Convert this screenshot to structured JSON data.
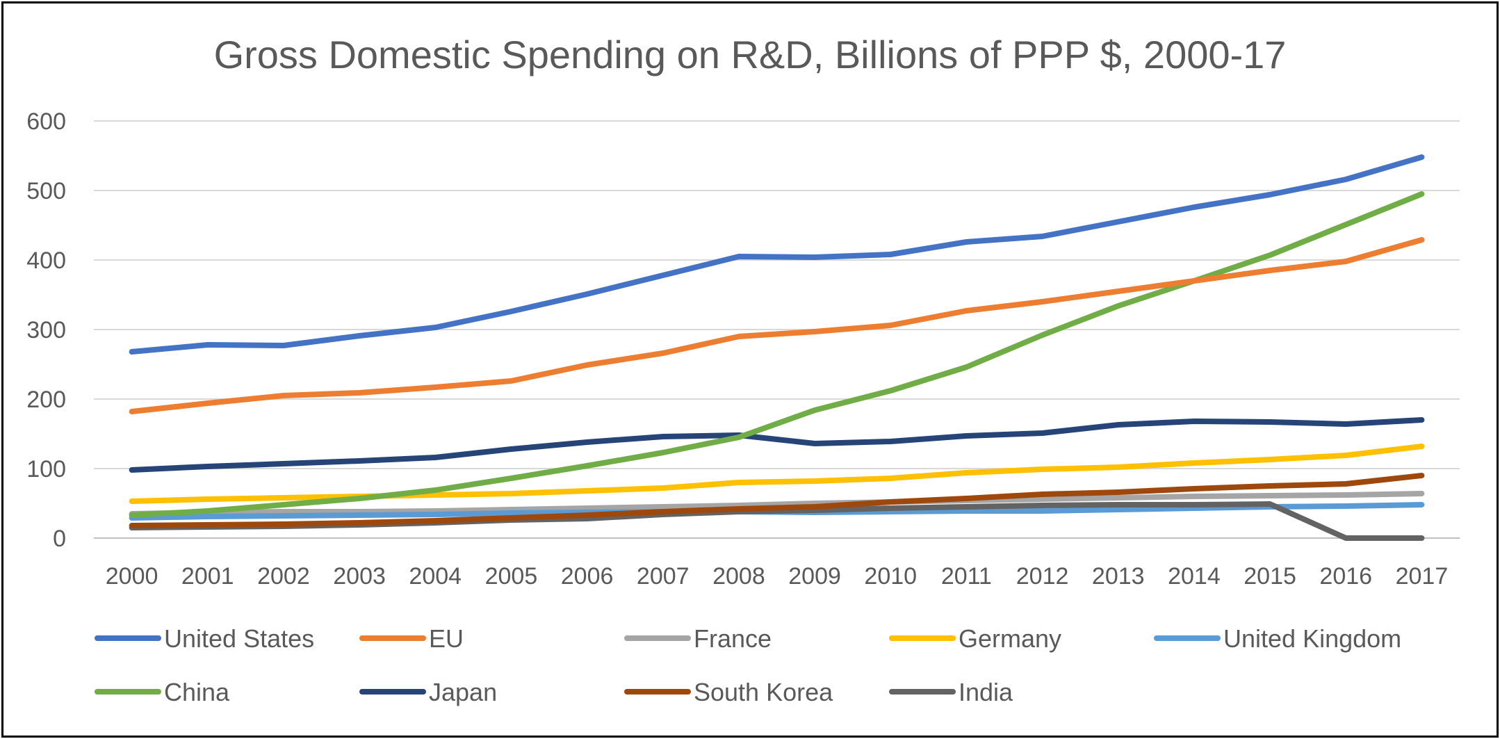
{
  "chart_data": {
    "type": "line",
    "title": "Gross Domestic Spending on R&D, Billions of PPP $, 2000-17",
    "xlabel": "",
    "ylabel": "",
    "ylim": [
      0,
      600
    ],
    "yticks": [
      "0",
      "100",
      "200",
      "300",
      "400",
      "500",
      "600"
    ],
    "categories": [
      "2000",
      "2001",
      "2002",
      "2003",
      "2004",
      "2005",
      "2006",
      "2007",
      "2008",
      "2009",
      "2010",
      "2011",
      "2012",
      "2013",
      "2014",
      "2015",
      "2016",
      "2017"
    ],
    "grid": true,
    "legend_position": "bottom",
    "series": [
      {
        "name": "United States",
        "color": "#4472C4",
        "values": [
          268,
          278,
          277,
          291,
          303,
          326,
          351,
          378,
          405,
          404,
          408,
          426,
          434,
          455,
          476,
          494,
          516,
          548
        ]
      },
      {
        "name": "EU",
        "color": "#ED7D31",
        "values": [
          182,
          194,
          205,
          209,
          217,
          226,
          249,
          266,
          290,
          297,
          306,
          327,
          340,
          355,
          370,
          385,
          398,
          429
        ]
      },
      {
        "name": "France",
        "color": "#A5A5A5",
        "values": [
          35,
          37,
          38,
          38,
          39,
          41,
          43,
          45,
          47,
          50,
          52,
          54,
          56,
          58,
          60,
          61,
          62,
          64
        ]
      },
      {
        "name": "Germany",
        "color": "#FFC000",
        "values": [
          53,
          56,
          58,
          60,
          62,
          64,
          68,
          72,
          80,
          82,
          86,
          94,
          99,
          102,
          108,
          113,
          119,
          132
        ]
      },
      {
        "name": "United Kingdom",
        "color": "#5B9BD5",
        "values": [
          29,
          31,
          32,
          33,
          34,
          36,
          37,
          38,
          38,
          37,
          38,
          39,
          39,
          41,
          43,
          45,
          46,
          48
        ]
      },
      {
        "name": "China",
        "color": "#70AD47",
        "values": [
          33,
          39,
          48,
          57,
          69,
          86,
          104,
          123,
          145,
          184,
          212,
          246,
          292,
          334,
          370,
          407,
          451,
          495
        ]
      },
      {
        "name": "Japan",
        "color": "#264478",
        "values": [
          98,
          103,
          107,
          111,
          116,
          128,
          138,
          146,
          148,
          136,
          139,
          147,
          151,
          163,
          168,
          167,
          164,
          170
        ]
      },
      {
        "name": "South Korea",
        "color": "#9E480E",
        "values": [
          18,
          19,
          20,
          22,
          25,
          29,
          33,
          38,
          42,
          45,
          52,
          57,
          63,
          66,
          71,
          75,
          78,
          90
        ]
      },
      {
        "name": "India",
        "color": "#636363",
        "values": [
          15,
          16,
          17,
          19,
          22,
          26,
          28,
          34,
          38,
          40,
          43,
          45,
          47,
          48,
          48,
          49,
          0,
          0
        ]
      }
    ]
  }
}
